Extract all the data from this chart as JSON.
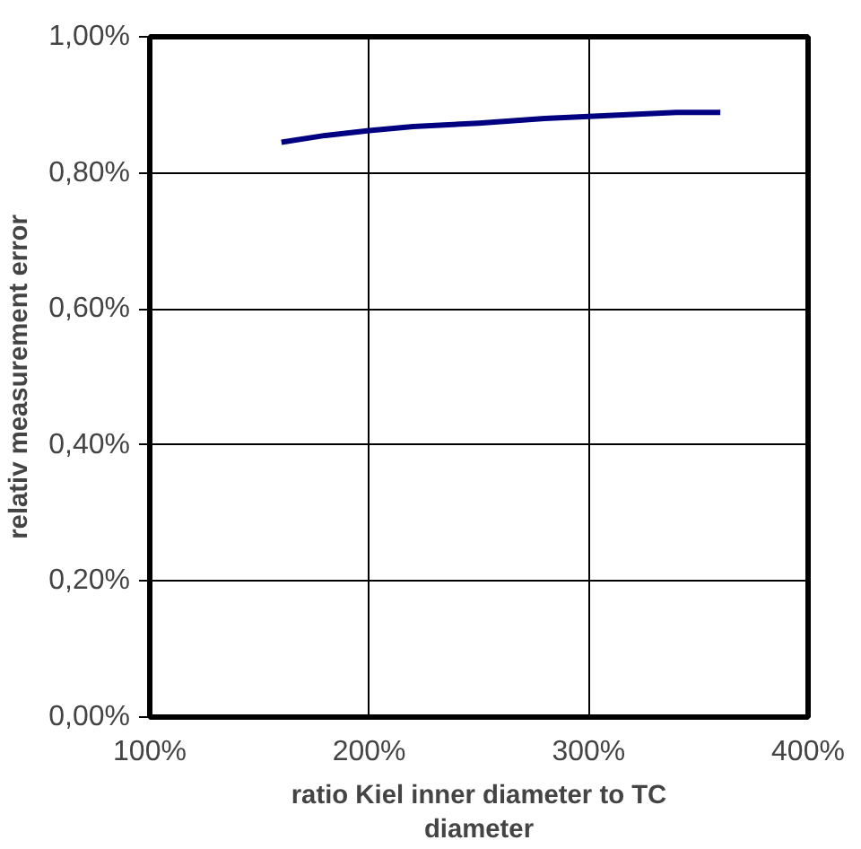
{
  "chart_data": {
    "type": "line",
    "xlabel": "ratio Kiel inner diameter to TC diameter",
    "ylabel": "relativ measurement error",
    "x": [
      160,
      180,
      200,
      220,
      250,
      280,
      300,
      320,
      340,
      360
    ],
    "series": [
      {
        "color": "#000080",
        "values": [
          0.845,
          0.855,
          0.862,
          0.868,
          0.873,
          0.88,
          0.883,
          0.886,
          0.889,
          0.889
        ]
      }
    ],
    "xlim": [
      100,
      400
    ],
    "xticks": [
      {
        "value": 100,
        "label": "100%"
      },
      {
        "value": 200,
        "label": "200%"
      },
      {
        "value": 300,
        "label": "300%"
      },
      {
        "value": 400,
        "label": "400%"
      }
    ],
    "ylim": [
      0,
      1
    ],
    "yticks": [
      {
        "value": 0,
        "label": "0,00%"
      },
      {
        "value": 0.2,
        "label": "0,20%"
      },
      {
        "value": 0.4,
        "label": "0,40%"
      },
      {
        "value": 0.6,
        "label": "0,60%"
      },
      {
        "value": 0.8,
        "label": "0,80%"
      },
      {
        "value": 1,
        "label": "1,00%"
      }
    ],
    "grid": true,
    "marker": "none",
    "line_style": "solid"
  }
}
